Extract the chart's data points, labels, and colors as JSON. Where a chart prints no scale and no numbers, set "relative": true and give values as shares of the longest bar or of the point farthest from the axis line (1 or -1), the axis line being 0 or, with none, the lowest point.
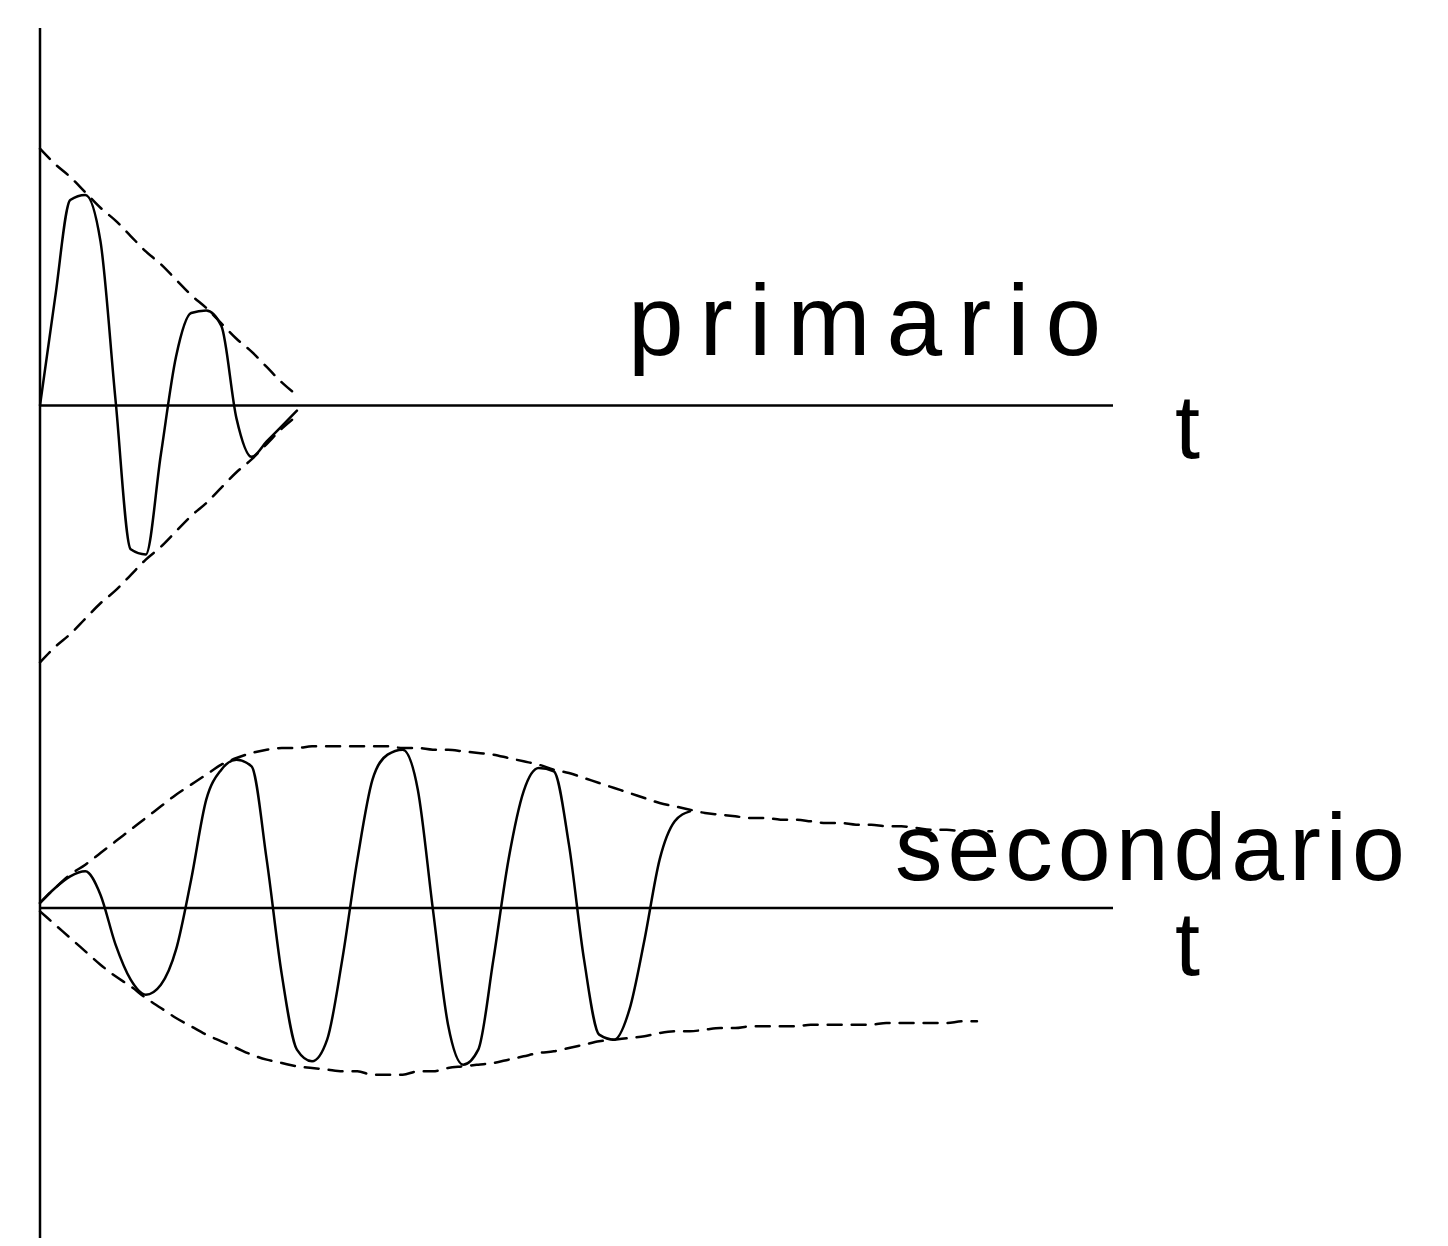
{
  "chart_data": [
    {
      "type": "line",
      "relative": true,
      "title": "primario",
      "xlabel": "t",
      "marker": "none",
      "categories": [
        null,
        null,
        null,
        null,
        null,
        null,
        null,
        null,
        null,
        null,
        null,
        null,
        null,
        null,
        null,
        null,
        null,
        null,
        null,
        null,
        null,
        null,
        null,
        null,
        null,
        null,
        null,
        null,
        null,
        null,
        null,
        null,
        null,
        null,
        null,
        null,
        null,
        null,
        null,
        null,
        null,
        null,
        null,
        null,
        null,
        null,
        null,
        null,
        null,
        null,
        null,
        null,
        null,
        null,
        null,
        null,
        null,
        null,
        null,
        null,
        null,
        null,
        null,
        null,
        null,
        null,
        null,
        null,
        null,
        null,
        null,
        null
      ],
      "series": [
        {
          "color": "#000000",
          "line_style": "solid",
          "values": [
            0,
            0.42,
            0.8,
            0.82,
            0.64,
            0.02,
            -0.56,
            -0.58,
            -0.19,
            0.19,
            0.36,
            0.37,
            0.31,
            -0.05,
            -0.2,
            -0.14,
            -0.08,
            -0.02,
            null,
            null,
            null,
            null,
            null,
            null,
            null,
            null,
            null,
            null,
            null,
            null,
            null,
            null,
            null,
            null,
            null,
            null,
            null,
            null,
            null,
            null,
            null,
            null,
            null,
            null,
            null,
            null,
            null,
            null,
            null,
            null,
            null,
            null,
            null,
            null,
            null,
            null,
            null,
            null,
            null,
            null,
            null,
            null,
            null,
            null,
            null,
            null,
            null,
            null,
            null,
            null,
            null,
            null
          ]
        },
        {
          "color": "#000000",
          "line_style": "dashed",
          "values": [
            1,
            0.94,
            0.89,
            0.83,
            0.77,
            0.72,
            0.66,
            0.6,
            0.55,
            0.49,
            0.43,
            0.38,
            0.32,
            0.26,
            0.21,
            0.15,
            0.09,
            0.04,
            null,
            null,
            null,
            null,
            null,
            null,
            null,
            null,
            null,
            null,
            null,
            null,
            null,
            null,
            null,
            null,
            null,
            null,
            null,
            null,
            null,
            null,
            null,
            null,
            null,
            null,
            null,
            null,
            null,
            null,
            null,
            null,
            null,
            null,
            null,
            null,
            null,
            null,
            null,
            null,
            null,
            null,
            null,
            null,
            null,
            null,
            null,
            null,
            null,
            null,
            null,
            null,
            null,
            null
          ]
        },
        {
          "color": "#000000",
          "line_style": "dashed",
          "values": [
            -1,
            -0.94,
            -0.89,
            -0.83,
            -0.77,
            -0.72,
            -0.66,
            -0.6,
            -0.55,
            -0.49,
            -0.43,
            -0.38,
            -0.32,
            -0.26,
            -0.21,
            -0.15,
            -0.09,
            -0.04,
            null,
            null,
            null,
            null,
            null,
            null,
            null,
            null,
            null,
            null,
            null,
            null,
            null,
            null,
            null,
            null,
            null,
            null,
            null,
            null,
            null,
            null,
            null,
            null,
            null,
            null,
            null,
            null,
            null,
            null,
            null,
            null,
            null,
            null,
            null,
            null,
            null,
            null,
            null,
            null,
            null,
            null,
            null,
            null,
            null,
            null,
            null,
            null,
            null,
            null,
            null,
            null,
            null,
            null
          ]
        }
      ]
    },
    {
      "type": "line",
      "relative": true,
      "title": "secondario",
      "xlabel": "t",
      "marker": "none",
      "categories": [
        null,
        null,
        null,
        null,
        null,
        null,
        null,
        null,
        null,
        null,
        null,
        null,
        null,
        null,
        null,
        null,
        null,
        null,
        null,
        null,
        null,
        null,
        null,
        null,
        null,
        null,
        null,
        null,
        null,
        null,
        null,
        null,
        null,
        null,
        null,
        null,
        null,
        null,
        null,
        null,
        null,
        null,
        null,
        null,
        null,
        null,
        null,
        null,
        null,
        null,
        null,
        null,
        null,
        null,
        null,
        null,
        null,
        null,
        null,
        null,
        null,
        null,
        null,
        null,
        null,
        null,
        null,
        null,
        null,
        null,
        null,
        null
      ],
      "series": [
        {
          "color": "#000000",
          "line_style": "solid",
          "values": [
            0.03,
            0.12,
            0.19,
            0.22,
            0.08,
            -0.22,
            -0.43,
            -0.52,
            -0.46,
            -0.25,
            0.17,
            0.65,
            0.83,
            0.89,
            0.85,
            0.29,
            -0.4,
            -0.85,
            -0.92,
            -0.79,
            -0.31,
            0.29,
            0.77,
            0.92,
            0.95,
            0.71,
            -0.01,
            -0.7,
            -0.94,
            -0.85,
            -0.31,
            0.29,
            0.7,
            0.84,
            0.82,
            0.38,
            -0.31,
            -0.76,
            -0.79,
            -0.61,
            -0.19,
            0.29,
            0.52,
            0.58,
            null,
            null,
            null,
            null,
            null,
            null,
            null,
            null,
            null,
            null,
            null,
            null,
            null,
            null,
            null,
            null,
            null,
            null,
            null,
            null,
            null,
            null,
            null,
            null,
            null,
            null,
            null,
            null
          ]
        },
        {
          "color": "#000000",
          "line_style": "dashed",
          "values": [
            0.03,
            0.12,
            0.2,
            0.26,
            0.33,
            0.4,
            0.47,
            0.54,
            0.61,
            0.68,
            0.74,
            0.8,
            0.86,
            0.9,
            0.93,
            0.95,
            0.96,
            0.96,
            0.97,
            0.97,
            0.97,
            0.97,
            0.97,
            0.97,
            0.96,
            0.96,
            0.95,
            0.95,
            0.94,
            0.93,
            0.92,
            0.9,
            0.88,
            0.86,
            0.83,
            0.81,
            0.78,
            0.75,
            0.72,
            0.69,
            0.66,
            0.63,
            0.61,
            0.59,
            0.57,
            0.56,
            0.55,
            0.54,
            0.54,
            0.53,
            0.53,
            0.52,
            0.51,
            0.51,
            0.5,
            0.5,
            0.49,
            0.49,
            0.48,
            0.47,
            0.47,
            0.46,
            0.46,
            0.46,
            null,
            null,
            null,
            null,
            null,
            null,
            null,
            null
          ]
        },
        {
          "color": "#000000",
          "line_style": "dashed",
          "values": [
            -0.02,
            -0.1,
            -0.18,
            -0.26,
            -0.34,
            -0.41,
            -0.47,
            -0.54,
            -0.6,
            -0.66,
            -0.71,
            -0.76,
            -0.8,
            -0.84,
            -0.88,
            -0.91,
            -0.93,
            -0.95,
            -0.96,
            -0.97,
            -0.98,
            -0.98,
            -1,
            -1,
            -1,
            -0.98,
            -0.98,
            -0.96,
            -0.95,
            -0.94,
            -0.93,
            -0.91,
            -0.89,
            -0.87,
            -0.86,
            -0.84,
            -0.82,
            -0.8,
            -0.79,
            -0.78,
            -0.77,
            -0.75,
            -0.74,
            -0.74,
            -0.73,
            -0.72,
            -0.72,
            -0.71,
            -0.71,
            -0.71,
            -0.71,
            -0.7,
            -0.7,
            -0.7,
            -0.7,
            -0.7,
            -0.69,
            -0.69,
            -0.69,
            -0.69,
            -0.69,
            -0.68,
            -0.68,
            null,
            null,
            null,
            null,
            null,
            null,
            null,
            null,
            null
          ]
        }
      ]
    }
  ]
}
